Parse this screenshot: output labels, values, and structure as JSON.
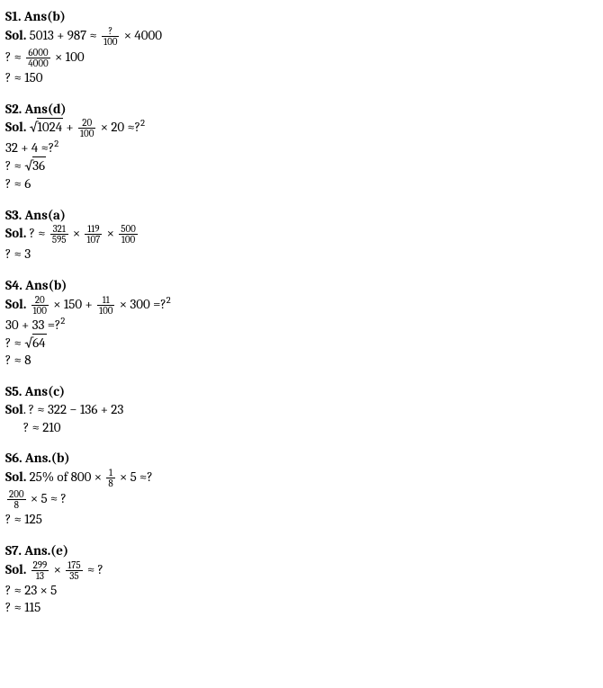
{
  "text_color": "#000000",
  "background_color": "#ffffff",
  "font_family": "Cambria/serif",
  "base_fontsize": 15,
  "frac_fontsize": 11,
  "s1": {
    "header": "S1. Ans(b)",
    "sol_label": "Sol.",
    "line1_left": "5013 + 987 ≈ ",
    "frac1_num": "?",
    "frac1_den": "100",
    "line1_right": "× 4000",
    "line2_prefix": " ? ≈ ",
    "frac2_num": "6000",
    "frac2_den": "4000",
    "line2_suffix": "× 100",
    "line3": " ? ≈  150"
  },
  "s2": {
    "header": "S2. Ans(d)",
    "sol_label": "Sol.",
    "sqrt_arg": "1024",
    "plus": " + ",
    "frac_num": "20",
    "frac_den": "100",
    "after_frac": "× 20  ≈?",
    "sup1": "2",
    "line2_prefix": " 32 + 4  ≈?",
    "line2_sup": "2",
    "line3_prefix": " ? ≈  ",
    "sqrt2_arg": "36",
    "line4": " ? ≈  6"
  },
  "s3": {
    "header": "S3. Ans(a)",
    "sol_label": "Sol.",
    "prefix": " ? ≈ ",
    "f1n": "321",
    "f1d": "595",
    "f2n": "119",
    "f2d": "107",
    "f3n": "500",
    "f3d": "100",
    "times": "× ",
    "line2": " ? ≈  3"
  },
  "s4": {
    "header": "S4. Ans(b)",
    "sol_label": "Sol.",
    "f1n": "20",
    "f1d": "100",
    "mid1": "× 150 + ",
    "f2n": "11",
    "f2d": "100",
    "mid2": "× 300  =?",
    "sup": "2",
    "line2": " 30 + 33  =?",
    "line2_sup": "2",
    "line3_prefix": " ? ≈  ",
    "sqrt_arg": "64",
    "line4": " ? ≈  8"
  },
  "s5": {
    "header": "S5. Ans(c)",
    "sol_label": "Sol",
    "line1_suffix": ". ? ≈ 322 − 136 + 23",
    "line2": "? ≈  210"
  },
  "s6": {
    "header": "S6. Ans.(b)",
    "sol_label": "Sol.",
    "before_frac": " 25% of 800 × ",
    "f1n": "1",
    "f1d": "8",
    "after_frac": "× 5  ≈?",
    "f2n": "200",
    "f2d": "8",
    "line2_suffix": "× 5 ≈  ?",
    "line3": "? ≈ 125"
  },
  "s7": {
    "header": "S7. Ans.(e)",
    "sol_label": "Sol.",
    "f1n": "299",
    "f1d": "13",
    "times": "× ",
    "f2n": "175",
    "f2d": "35",
    "suffix": "≈  ?",
    "line2": "? ≈ 23 × 5",
    "line3": "? ≈ 115"
  }
}
